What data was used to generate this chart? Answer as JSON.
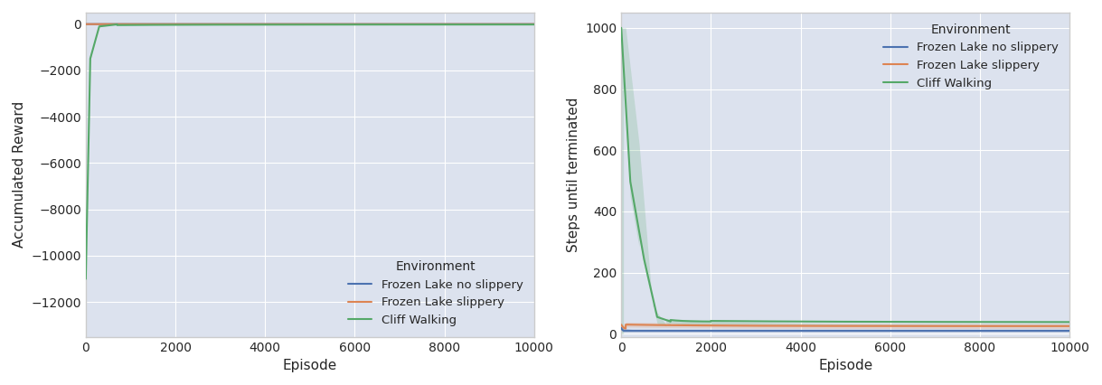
{
  "fig_width": 12.19,
  "fig_height": 4.26,
  "dpi": 100,
  "background_color": "#dce2ee",
  "left_xlabel": "Episode",
  "left_ylabel": "Accumulated Reward",
  "left_xlim": [
    0,
    10000
  ],
  "left_ylim": [
    -13500,
    500
  ],
  "left_yticks": [
    0,
    -2000,
    -4000,
    -6000,
    -8000,
    -10000,
    -12000
  ],
  "right_xlabel": "Episode",
  "right_ylabel": "Steps until terminated",
  "right_xlim": [
    0,
    10000
  ],
  "right_ylim": [
    -10,
    1050
  ],
  "right_yticks": [
    0,
    200,
    400,
    600,
    800,
    1000
  ],
  "legend_title": "Environment",
  "legend_entries": [
    "Frozen Lake no slippery",
    "Frozen Lake slippery",
    "Cliff Walking"
  ],
  "colors": {
    "frozen_lake_no_slip": "#4c72b0",
    "frozen_lake_slip": "#dd8452",
    "cliff_walking": "#55a868"
  },
  "n_episodes": 10000,
  "line_width": 1.5,
  "fill_alpha": 0.2
}
